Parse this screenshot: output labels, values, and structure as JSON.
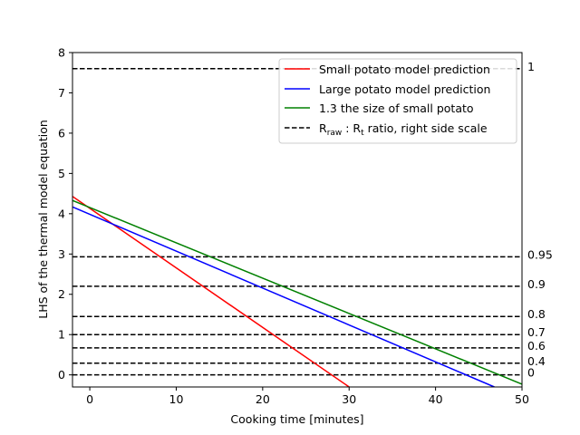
{
  "chart_data": {
    "type": "line",
    "xlabel": "Cooking time [minutes]",
    "ylabel": "LHS of the thermal model equation",
    "xlim": [
      -2,
      50
    ],
    "ylim": [
      -0.3,
      8
    ],
    "xticks": [
      0,
      10,
      20,
      30,
      40,
      50
    ],
    "yticks": [
      0,
      1,
      2,
      3,
      4,
      5,
      6,
      7,
      8
    ],
    "grid": false,
    "legend_position": "top-right",
    "series": [
      {
        "name": "Small potato model prediction",
        "color": "#ff0000",
        "style": "solid",
        "x": [
          -2,
          30
        ],
        "y": [
          4.43,
          -0.3
        ]
      },
      {
        "name": "Large potato model prediction",
        "color": "#0000ff",
        "style": "solid",
        "x": [
          -2,
          46.8
        ],
        "y": [
          4.17,
          -0.3
        ]
      },
      {
        "name": "1.3 the size of small potato",
        "color": "#008000",
        "style": "solid",
        "x": [
          -2,
          50
        ],
        "y": [
          4.33,
          -0.23
        ]
      }
    ],
    "ratio_series": {
      "legend_main": "R",
      "legend_sub1": "raw",
      "legend_colon": " : R",
      "legend_sub2": "t",
      "legend_rest": " ratio, right side scale",
      "color": "#000000",
      "style": "dashed",
      "lines": [
        {
          "label": "1",
          "y": 7.6
        },
        {
          "label": "0.95",
          "y": 2.93
        },
        {
          "label": "0.9",
          "y": 2.2
        },
        {
          "label": "0.8",
          "y": 1.45
        },
        {
          "label": "0.7",
          "y": 1.0
        },
        {
          "label": "0.6",
          "y": 0.67
        },
        {
          "label": "0.4",
          "y": 0.29
        },
        {
          "label": "0",
          "y": 0.0
        }
      ]
    }
  }
}
